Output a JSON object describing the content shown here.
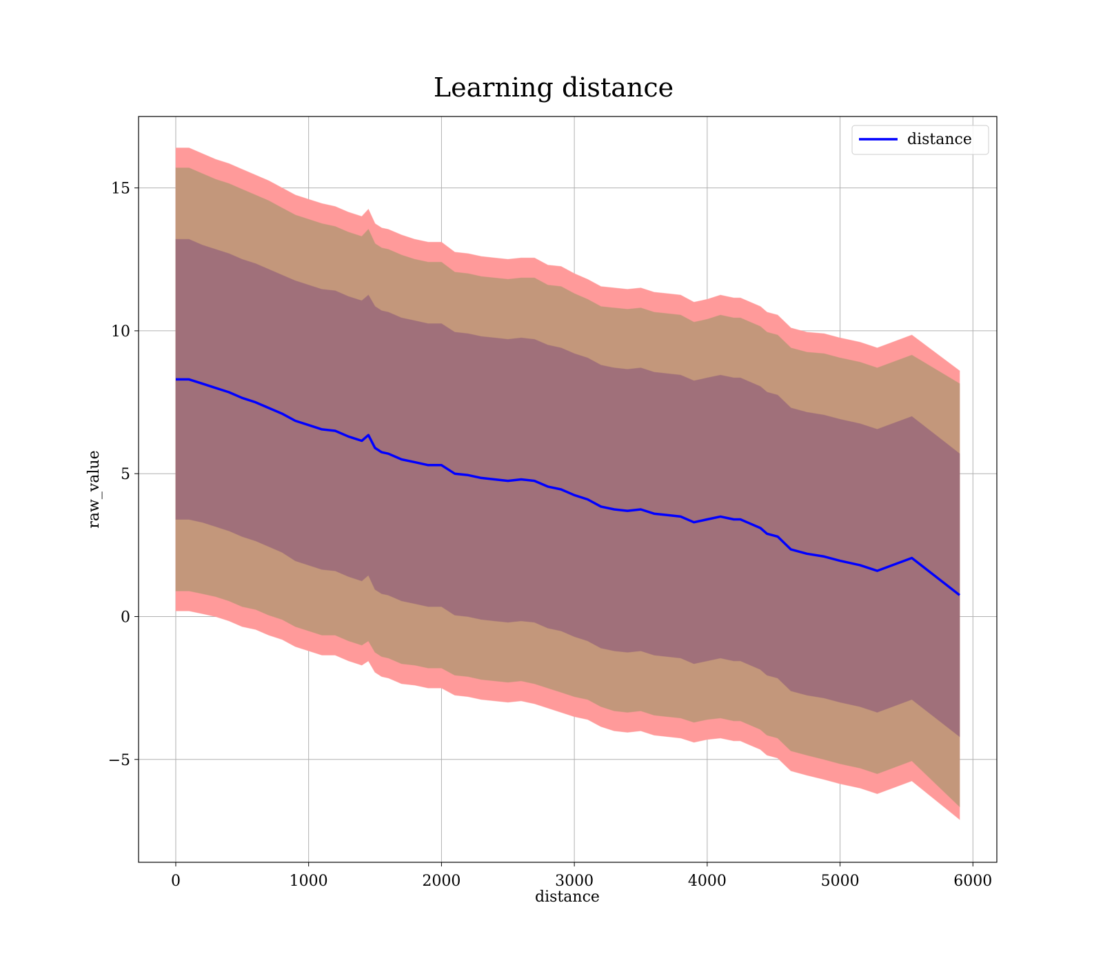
{
  "chart_data": {
    "type": "line",
    "title": "Learning distance",
    "xlabel": "distance",
    "ylabel": "raw_value",
    "xlim": [
      -280,
      6180
    ],
    "ylim": [
      -8.6,
      17.5
    ],
    "xticks": [
      0,
      1000,
      2000,
      3000,
      4000,
      5000,
      6000
    ],
    "xtick_labels": [
      "0",
      "1000",
      "2000",
      "3000",
      "4000",
      "5000",
      "6000"
    ],
    "yticks": [
      -5,
      0,
      5,
      10,
      15
    ],
    "ytick_labels": [
      "−5",
      "0",
      "5",
      "10",
      "15"
    ],
    "grid": true,
    "legend": {
      "placement": "top-right",
      "entries": [
        "distance"
      ]
    },
    "colors": {
      "line": "#0000ff",
      "outer_band": "#ff9a9a",
      "middle_band": "#c3977b",
      "inner_band": "#a0707a"
    },
    "x": [
      0,
      100,
      200,
      300,
      400,
      500,
      600,
      700,
      800,
      900,
      1000,
      1100,
      1200,
      1300,
      1400,
      1450,
      1500,
      1550,
      1600,
      1700,
      1800,
      1900,
      2000,
      2100,
      2200,
      2300,
      2400,
      2500,
      2600,
      2700,
      2800,
      2900,
      3000,
      3100,
      3200,
      3300,
      3400,
      3500,
      3600,
      3700,
      3800,
      3900,
      4000,
      4100,
      4150,
      4200,
      4250,
      4300,
      4400,
      4450,
      4530,
      4630,
      4750,
      4880,
      5000,
      5150,
      5280,
      5540,
      5900
    ],
    "series": [
      {
        "name": "distance",
        "values": [
          8.3,
          8.3,
          8.15,
          8.0,
          7.85,
          7.65,
          7.5,
          7.3,
          7.1,
          6.85,
          6.7,
          6.55,
          6.5,
          6.3,
          6.15,
          6.35,
          5.9,
          5.75,
          5.7,
          5.5,
          5.4,
          5.3,
          5.3,
          5.0,
          4.95,
          4.85,
          4.8,
          4.75,
          4.8,
          4.75,
          4.55,
          4.45,
          4.25,
          4.1,
          3.85,
          3.75,
          3.7,
          3.75,
          3.6,
          3.55,
          3.5,
          3.3,
          3.4,
          3.5,
          3.45,
          3.4,
          3.4,
          3.3,
          3.1,
          2.9,
          2.8,
          2.35,
          2.2,
          2.1,
          1.95,
          1.8,
          1.6,
          2.05,
          0.75
        ]
      }
    ],
    "bands": [
      {
        "band": "outer",
        "half_width": [
          8.1,
          8.1,
          8.05,
          8.0,
          8.0,
          8.0,
          7.95,
          7.95,
          7.9,
          7.9,
          7.9,
          7.9,
          7.85,
          7.85,
          7.85,
          7.9,
          7.85,
          7.85,
          7.85,
          7.85,
          7.8,
          7.8,
          7.8,
          7.75,
          7.75,
          7.75,
          7.75,
          7.75,
          7.75,
          7.8,
          7.75,
          7.8,
          7.75,
          7.7,
          7.7,
          7.75,
          7.75,
          7.75,
          7.75,
          7.75,
          7.75,
          7.7,
          7.7,
          7.75,
          7.75,
          7.75,
          7.75,
          7.75,
          7.75,
          7.75,
          7.75,
          7.75,
          7.75,
          7.8,
          7.8,
          7.8,
          7.8,
          7.8,
          7.85
        ]
      },
      {
        "band": "middle",
        "half_width": [
          7.4,
          7.4,
          7.35,
          7.3,
          7.3,
          7.3,
          7.25,
          7.25,
          7.2,
          7.2,
          7.2,
          7.2,
          7.15,
          7.15,
          7.15,
          7.2,
          7.15,
          7.15,
          7.15,
          7.15,
          7.1,
          7.1,
          7.1,
          7.05,
          7.05,
          7.05,
          7.05,
          7.05,
          7.05,
          7.1,
          7.05,
          7.1,
          7.05,
          7.0,
          7.0,
          7.05,
          7.05,
          7.05,
          7.05,
          7.05,
          7.05,
          7.0,
          7.0,
          7.05,
          7.05,
          7.05,
          7.05,
          7.05,
          7.05,
          7.05,
          7.05,
          7.05,
          7.05,
          7.1,
          7.1,
          7.1,
          7.1,
          7.1,
          7.4
        ]
      },
      {
        "band": "inner",
        "half_width": [
          4.9,
          4.9,
          4.85,
          4.85,
          4.85,
          4.85,
          4.85,
          4.85,
          4.85,
          4.9,
          4.9,
          4.9,
          4.9,
          4.9,
          4.9,
          4.9,
          4.95,
          4.95,
          4.95,
          4.95,
          4.95,
          4.95,
          4.95,
          4.95,
          4.95,
          4.95,
          4.95,
          4.95,
          4.95,
          4.95,
          4.95,
          4.95,
          4.95,
          4.95,
          4.95,
          4.95,
          4.95,
          4.95,
          4.95,
          4.95,
          4.95,
          4.95,
          4.95,
          4.95,
          4.95,
          4.95,
          4.95,
          4.95,
          4.95,
          4.95,
          4.95,
          4.95,
          4.95,
          4.95,
          4.95,
          4.95,
          4.95,
          4.95,
          4.95
        ]
      }
    ]
  }
}
